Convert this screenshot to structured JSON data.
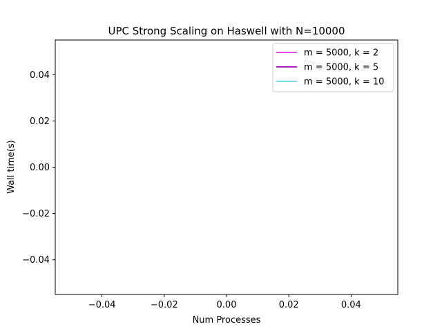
{
  "chart_data": {
    "type": "line",
    "title": "UPC Strong Scaling on Haswell with N=10000",
    "xlabel": "Num Processes",
    "ylabel": "Wall time(s)",
    "xlim": [
      -0.055,
      0.055
    ],
    "ylim": [
      -0.055,
      0.055
    ],
    "x_ticks": [
      -0.04,
      -0.02,
      0.0,
      0.02,
      0.04
    ],
    "y_ticks": [
      -0.04,
      -0.02,
      0.0,
      0.02,
      0.04
    ],
    "x_tick_labels": [
      "−0.04",
      "−0.02",
      "0.00",
      "0.02",
      "0.04"
    ],
    "y_tick_labels": [
      "−0.04",
      "−0.02",
      "0.00",
      "0.02",
      "0.04"
    ],
    "grid": false,
    "legend_position": "top-right",
    "series": [
      {
        "name": "m = 5000, k = 2",
        "color": "#e033e0",
        "x": [],
        "y": []
      },
      {
        "name": "m = 5000, k = 5",
        "color": "#9b00b4",
        "x": [],
        "y": []
      },
      {
        "name": "m = 5000, k = 10",
        "color": "#66d9e3",
        "x": [],
        "y": []
      }
    ]
  }
}
